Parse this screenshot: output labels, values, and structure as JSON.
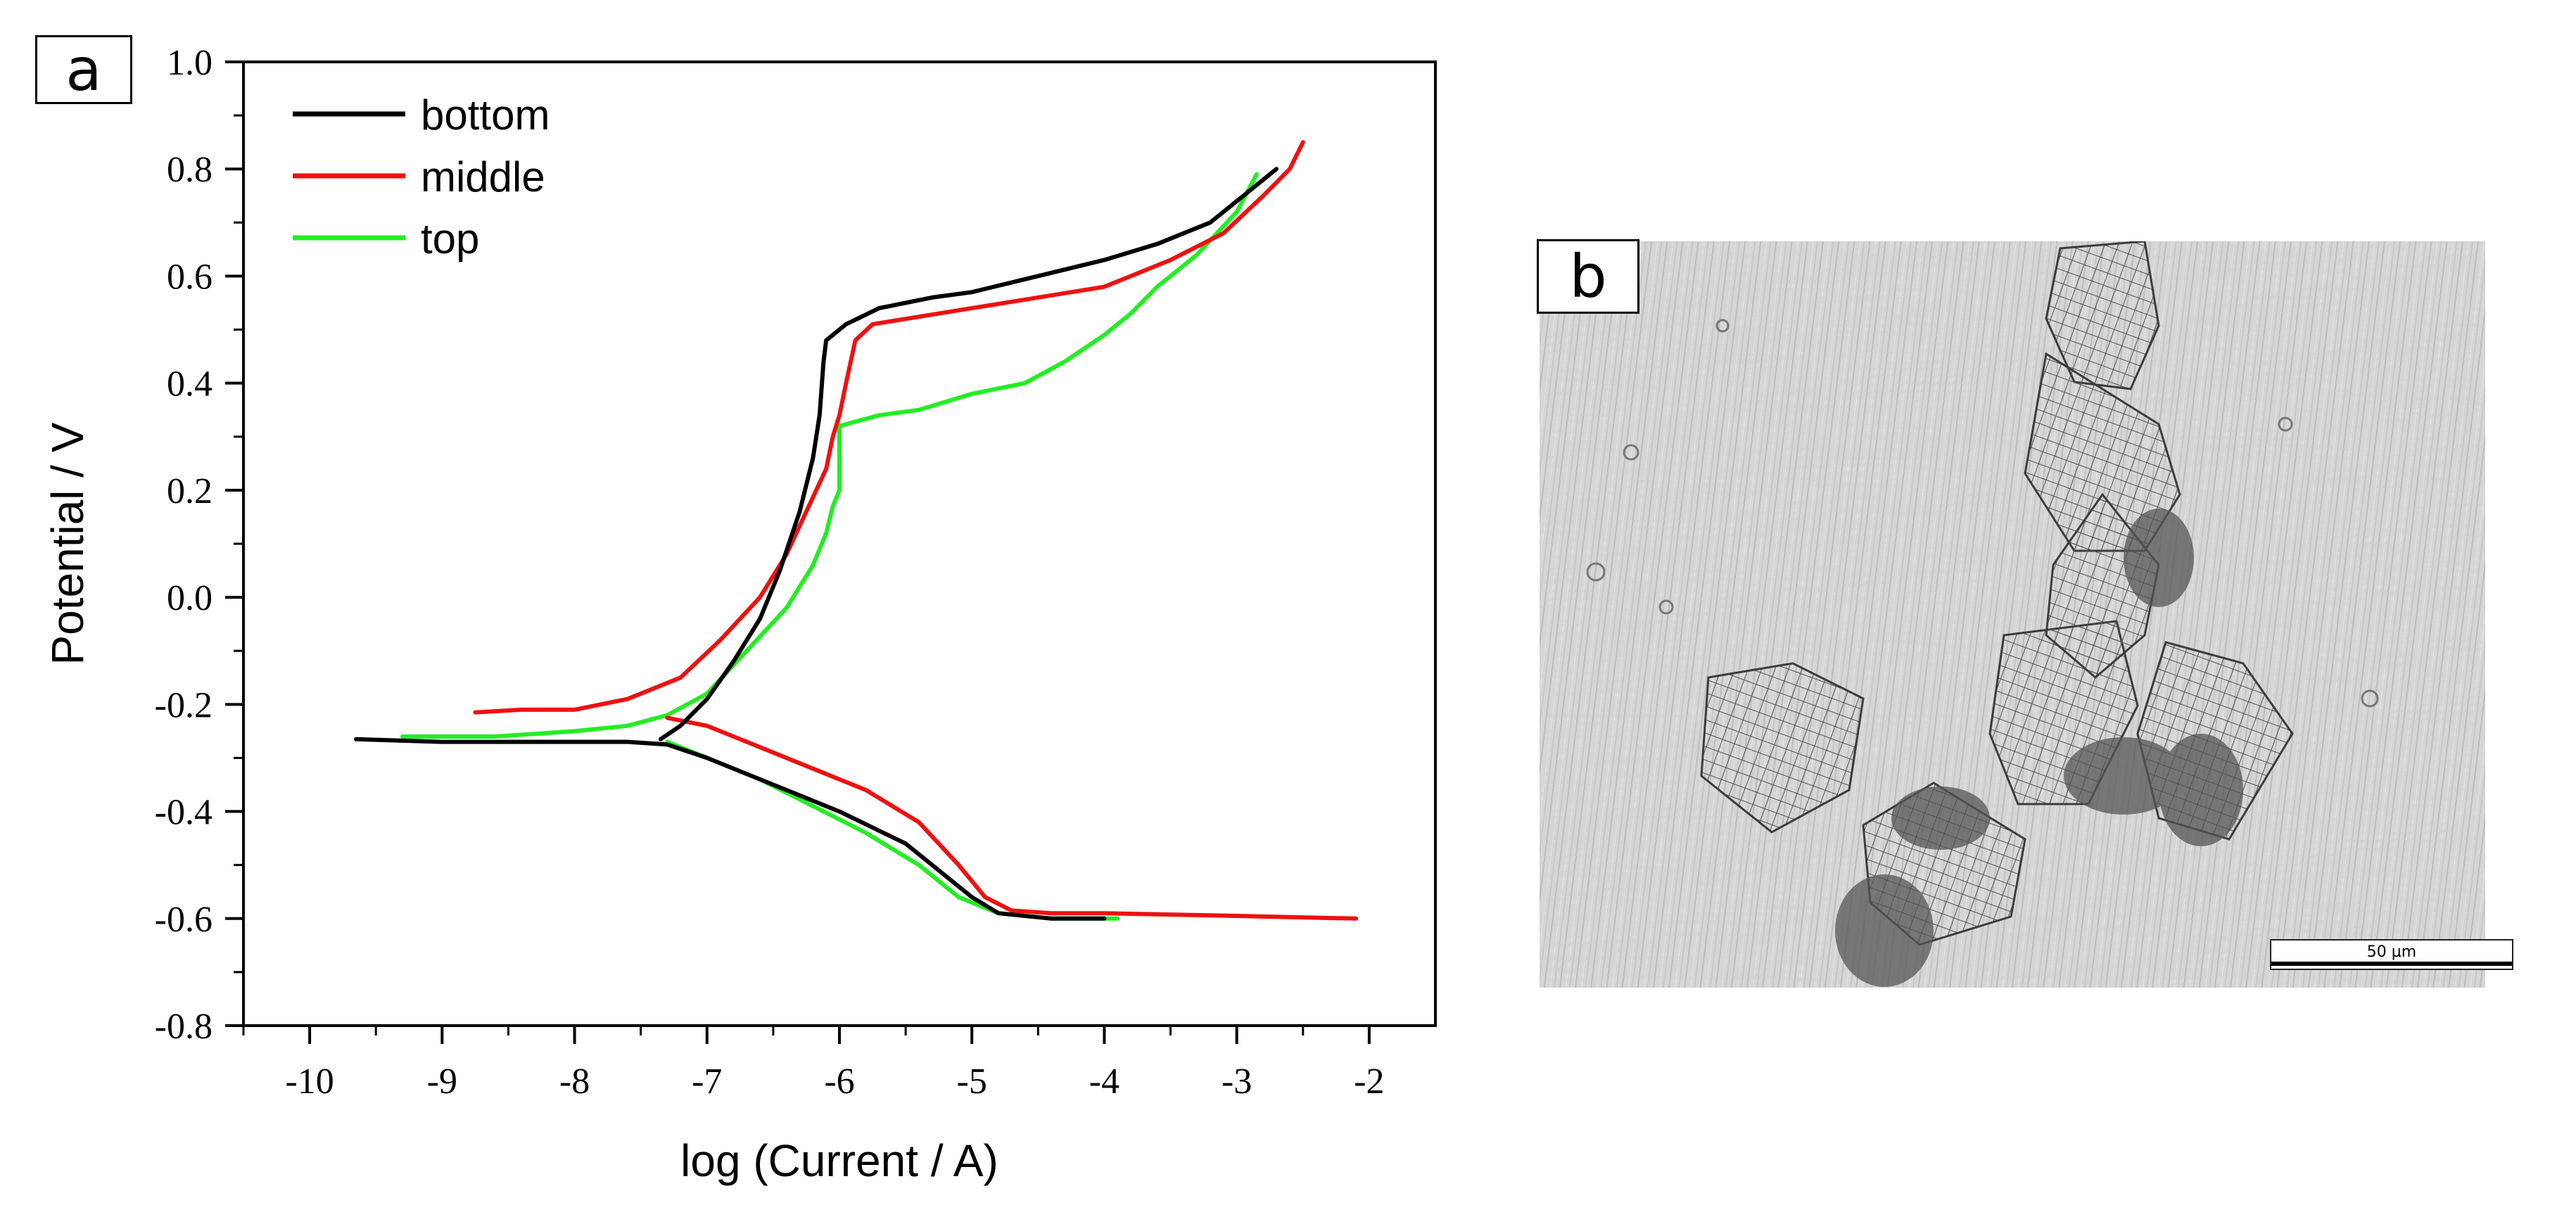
{
  "panels": {
    "a_label": "a",
    "b_label": "b"
  },
  "chart_data": {
    "type": "line",
    "title": "",
    "xlabel": "log (Current / A)",
    "ylabel": "Potential / V",
    "xlim": [
      -10.5,
      -1.5
    ],
    "ylim": [
      -0.8,
      1.0
    ],
    "xticks": [
      -10,
      -9,
      -8,
      -7,
      -6,
      -5,
      -4,
      -3,
      -2
    ],
    "yticks": [
      -0.8,
      -0.6,
      -0.4,
      -0.2,
      0.0,
      0.2,
      0.4,
      0.6,
      0.8,
      1.0
    ],
    "xtick_labels": [
      "-10",
      "-9",
      "-8",
      "-7",
      "-6",
      "-5",
      "-4",
      "-3",
      "-2"
    ],
    "ytick_labels": [
      "-0.8",
      "-0.6",
      "-0.4",
      "-0.2",
      "0.0",
      "0.2",
      "0.4",
      "0.6",
      "0.8",
      "1.0"
    ],
    "legend_position": "top-left",
    "series": [
      {
        "name": "bottom",
        "color": "#000000",
        "anodic": [
          [
            -7.35,
            -0.265
          ],
          [
            -7.2,
            -0.24
          ],
          [
            -7.0,
            -0.19
          ],
          [
            -6.8,
            -0.12
          ],
          [
            -6.6,
            -0.04
          ],
          [
            -6.45,
            0.05
          ],
          [
            -6.3,
            0.16
          ],
          [
            -6.2,
            0.26
          ],
          [
            -6.15,
            0.34
          ],
          [
            -6.12,
            0.44
          ],
          [
            -6.1,
            0.48
          ],
          [
            -5.95,
            0.51
          ],
          [
            -5.7,
            0.54
          ],
          [
            -5.3,
            0.56
          ],
          [
            -5.0,
            0.57
          ],
          [
            -4.5,
            0.6
          ],
          [
            -4.0,
            0.63
          ],
          [
            -3.6,
            0.66
          ],
          [
            -3.2,
            0.7
          ],
          [
            -2.95,
            0.75
          ],
          [
            -2.7,
            0.8
          ]
        ],
        "cathodic": [
          [
            -9.65,
            -0.265
          ],
          [
            -9.0,
            -0.27
          ],
          [
            -8.3,
            -0.27
          ],
          [
            -7.6,
            -0.27
          ],
          [
            -7.3,
            -0.275
          ],
          [
            -7.0,
            -0.3
          ],
          [
            -6.5,
            -0.35
          ],
          [
            -6.0,
            -0.4
          ],
          [
            -5.5,
            -0.46
          ],
          [
            -5.2,
            -0.52
          ],
          [
            -5.0,
            -0.56
          ],
          [
            -4.8,
            -0.59
          ],
          [
            -4.4,
            -0.6
          ],
          [
            -4.0,
            -0.6
          ]
        ]
      },
      {
        "name": "middle",
        "color": "#ee1111",
        "anodic": [
          [
            -8.75,
            -0.215
          ],
          [
            -8.4,
            -0.21
          ],
          [
            -8.0,
            -0.21
          ],
          [
            -7.6,
            -0.19
          ],
          [
            -7.2,
            -0.15
          ],
          [
            -6.9,
            -0.08
          ],
          [
            -6.6,
            0.0
          ],
          [
            -6.4,
            0.08
          ],
          [
            -6.25,
            0.16
          ],
          [
            -6.1,
            0.24
          ],
          [
            -6.05,
            0.3
          ],
          [
            -6.0,
            0.34
          ],
          [
            -5.95,
            0.4
          ],
          [
            -5.88,
            0.48
          ],
          [
            -5.75,
            0.51
          ],
          [
            -5.5,
            0.52
          ],
          [
            -5.0,
            0.54
          ],
          [
            -4.5,
            0.56
          ],
          [
            -4.0,
            0.58
          ],
          [
            -3.5,
            0.63
          ],
          [
            -3.1,
            0.68
          ],
          [
            -2.8,
            0.75
          ],
          [
            -2.6,
            0.8
          ],
          [
            -2.5,
            0.85
          ]
        ],
        "cathodic": [
          [
            -7.3,
            -0.225
          ],
          [
            -7.0,
            -0.24
          ],
          [
            -6.6,
            -0.28
          ],
          [
            -6.2,
            -0.32
          ],
          [
            -5.8,
            -0.36
          ],
          [
            -5.4,
            -0.42
          ],
          [
            -5.1,
            -0.5
          ],
          [
            -4.9,
            -0.56
          ],
          [
            -4.7,
            -0.585
          ],
          [
            -4.4,
            -0.59
          ],
          [
            -4.0,
            -0.59
          ],
          [
            -3.0,
            -0.595
          ],
          [
            -2.1,
            -0.6
          ]
        ]
      },
      {
        "name": "top",
        "color": "#22ee22",
        "anodic": [
          [
            -9.3,
            -0.26
          ],
          [
            -8.6,
            -0.26
          ],
          [
            -8.0,
            -0.25
          ],
          [
            -7.6,
            -0.24
          ],
          [
            -7.3,
            -0.22
          ],
          [
            -7.0,
            -0.18
          ],
          [
            -6.7,
            -0.1
          ],
          [
            -6.4,
            -0.02
          ],
          [
            -6.2,
            0.06
          ],
          [
            -6.1,
            0.12
          ],
          [
            -6.05,
            0.17
          ],
          [
            -6.0,
            0.2
          ],
          [
            -6.0,
            0.32
          ],
          [
            -5.7,
            0.34
          ],
          [
            -5.4,
            0.35
          ],
          [
            -5.0,
            0.38
          ],
          [
            -4.6,
            0.4
          ],
          [
            -4.3,
            0.44
          ],
          [
            -4.0,
            0.49
          ],
          [
            -3.8,
            0.53
          ],
          [
            -3.6,
            0.58
          ],
          [
            -3.3,
            0.64
          ],
          [
            -3.0,
            0.72
          ],
          [
            -2.85,
            0.79
          ]
        ],
        "cathodic": [
          [
            -7.3,
            -0.27
          ],
          [
            -7.0,
            -0.3
          ],
          [
            -6.6,
            -0.34
          ],
          [
            -6.2,
            -0.39
          ],
          [
            -5.8,
            -0.44
          ],
          [
            -5.4,
            -0.5
          ],
          [
            -5.1,
            -0.56
          ],
          [
            -4.8,
            -0.59
          ],
          [
            -4.4,
            -0.6
          ],
          [
            -3.9,
            -0.6
          ]
        ]
      }
    ]
  },
  "micrograph": {
    "scale_label": "50 µm"
  }
}
